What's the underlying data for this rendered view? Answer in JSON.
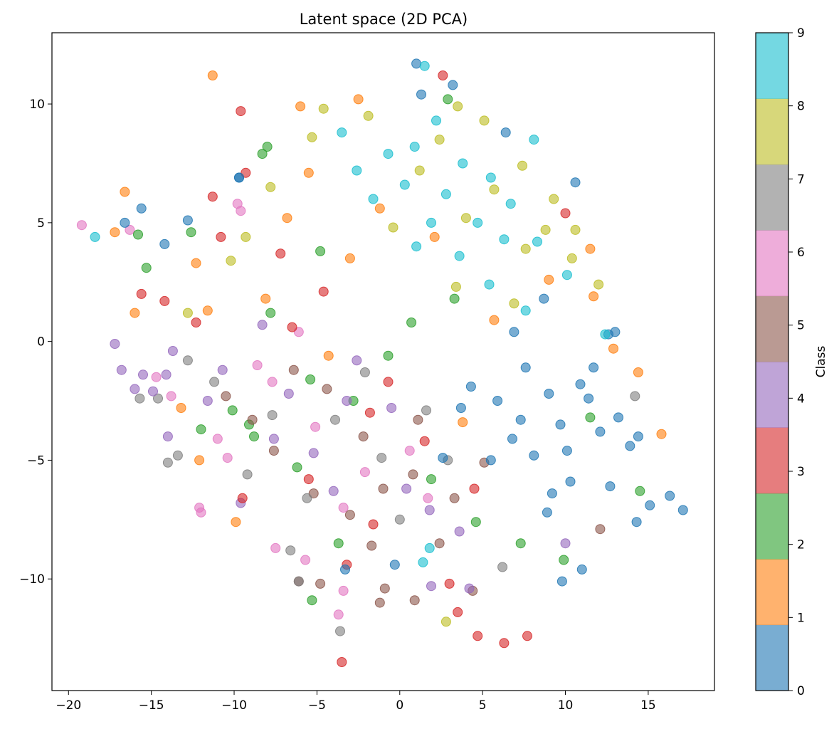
{
  "chart_data": {
    "type": "scatter",
    "title": "Latent space (2D PCA)",
    "xlabel": "",
    "ylabel": "",
    "xlim": [
      -21,
      19
    ],
    "ylim": [
      -14.7,
      13
    ],
    "xticks": [
      -20,
      -15,
      -10,
      -5,
      0,
      5,
      10,
      15
    ],
    "yticks": [
      -10,
      -5,
      0,
      5,
      10
    ],
    "xtick_labels": [
      "−20",
      "−15",
      "−10",
      "−5",
      "0",
      "5",
      "10",
      "15"
    ],
    "ytick_labels": [
      "−10",
      "−5",
      "0",
      "5",
      "10"
    ],
    "grid": false,
    "marker_alpha": 0.6,
    "colorbar": {
      "label": "Class",
      "ticks": [
        0,
        1,
        2,
        3,
        4,
        5,
        6,
        7,
        8,
        9
      ],
      "tick_labels": [
        "0",
        "1",
        "2",
        "3",
        "4",
        "5",
        "6",
        "7",
        "8",
        "9"
      ],
      "colors": [
        "#1f77b4",
        "#ff7f0e",
        "#2ca02c",
        "#d62728",
        "#9467bd",
        "#8c564b",
        "#e377c2",
        "#7f7f7f",
        "#bcbd22",
        "#17becf"
      ]
    },
    "series": [
      {
        "class": 0,
        "points": [
          [
            1.0,
            11.7
          ],
          [
            1.3,
            10.4
          ],
          [
            -9.7,
            6.9
          ],
          [
            -15.6,
            5.6
          ],
          [
            -16.6,
            5.0
          ],
          [
            -14.2,
            4.1
          ],
          [
            -12.8,
            5.1
          ],
          [
            10.6,
            6.7
          ],
          [
            6.4,
            8.8
          ],
          [
            9.8,
            -10.1
          ],
          [
            11.0,
            -9.6
          ],
          [
            17.1,
            -7.1
          ],
          [
            16.3,
            -6.5
          ],
          [
            15.1,
            -6.9
          ],
          [
            14.3,
            -7.6
          ],
          [
            13.9,
            -4.4
          ],
          [
            14.4,
            -4.0
          ],
          [
            12.6,
            0.3
          ],
          [
            13.0,
            0.4
          ],
          [
            3.2,
            10.8
          ],
          [
            -9.7,
            6.9
          ],
          [
            5.5,
            -5.0
          ],
          [
            8.1,
            -4.8
          ],
          [
            9.7,
            -3.5
          ],
          [
            11.4,
            -2.4
          ],
          [
            12.1,
            -3.8
          ],
          [
            7.6,
            -1.1
          ],
          [
            6.8,
            -4.1
          ],
          [
            10.3,
            -5.9
          ],
          [
            4.3,
            -1.9
          ],
          [
            8.7,
            1.8
          ],
          [
            6.9,
            0.4
          ],
          [
            11.7,
            -1.1
          ],
          [
            9.2,
            -6.4
          ],
          [
            10.1,
            -4.6
          ],
          [
            13.2,
            -3.2
          ],
          [
            3.7,
            -2.8
          ],
          [
            5.9,
            -2.5
          ],
          [
            2.6,
            -4.9
          ],
          [
            7.3,
            -3.3
          ],
          [
            8.9,
            -7.2
          ],
          [
            12.7,
            -6.1
          ],
          [
            9.0,
            -2.2
          ],
          [
            10.9,
            -1.8
          ],
          [
            -0.3,
            -9.4
          ],
          [
            -3.3,
            -9.6
          ]
        ]
      },
      {
        "class": 1,
        "points": [
          [
            -11.3,
            11.2
          ],
          [
            -2.5,
            10.2
          ],
          [
            -6.0,
            9.9
          ],
          [
            -16.6,
            6.3
          ],
          [
            -17.2,
            4.6
          ],
          [
            -16.0,
            1.2
          ],
          [
            12.9,
            -0.3
          ],
          [
            14.4,
            -1.3
          ],
          [
            15.8,
            -3.9
          ],
          [
            11.5,
            3.9
          ],
          [
            -3.0,
            3.5
          ],
          [
            -5.5,
            7.1
          ],
          [
            -8.1,
            1.8
          ],
          [
            -11.6,
            1.3
          ],
          [
            -13.2,
            -2.8
          ],
          [
            -12.1,
            -5.0
          ],
          [
            -9.9,
            -7.6
          ],
          [
            5.7,
            0.9
          ],
          [
            9.0,
            2.6
          ],
          [
            11.7,
            1.9
          ],
          [
            -1.2,
            5.6
          ],
          [
            2.1,
            4.4
          ],
          [
            -6.8,
            5.2
          ],
          [
            -4.3,
            -0.6
          ],
          [
            3.8,
            -3.4
          ],
          [
            -12.3,
            3.3
          ]
        ]
      },
      {
        "class": 2,
        "points": [
          [
            2.9,
            10.2
          ],
          [
            -8.0,
            8.2
          ],
          [
            -8.3,
            7.9
          ],
          [
            -12.6,
            4.6
          ],
          [
            -15.3,
            3.1
          ],
          [
            -15.8,
            4.5
          ],
          [
            -5.3,
            -10.9
          ],
          [
            9.9,
            -9.2
          ],
          [
            7.3,
            -8.5
          ],
          [
            14.5,
            -6.3
          ],
          [
            -7.8,
            1.2
          ],
          [
            -2.8,
            -2.5
          ],
          [
            -5.4,
            -1.6
          ],
          [
            0.7,
            0.8
          ],
          [
            -9.1,
            -3.5
          ],
          [
            -4.8,
            3.8
          ],
          [
            1.9,
            -5.8
          ],
          [
            4.6,
            -7.6
          ],
          [
            11.5,
            -3.2
          ],
          [
            -6.2,
            -5.3
          ],
          [
            -12.0,
            -3.7
          ],
          [
            -10.1,
            -2.9
          ],
          [
            -0.7,
            -0.6
          ],
          [
            3.3,
            1.8
          ],
          [
            -3.7,
            -8.5
          ],
          [
            -8.8,
            -4.0
          ]
        ]
      },
      {
        "class": 3,
        "points": [
          [
            -9.6,
            9.7
          ],
          [
            2.6,
            11.2
          ],
          [
            -9.3,
            7.1
          ],
          [
            -11.3,
            6.1
          ],
          [
            -15.6,
            2.0
          ],
          [
            -14.2,
            1.7
          ],
          [
            -3.5,
            -13.5
          ],
          [
            6.3,
            -12.7
          ],
          [
            4.7,
            -12.4
          ],
          [
            7.7,
            -12.4
          ],
          [
            3.5,
            -11.4
          ],
          [
            3.0,
            -10.2
          ],
          [
            -3.2,
            -9.4
          ],
          [
            -1.6,
            -7.7
          ],
          [
            10.0,
            5.4
          ],
          [
            -4.6,
            2.1
          ],
          [
            -7.2,
            3.7
          ],
          [
            -10.8,
            4.4
          ],
          [
            -1.8,
            -3.0
          ],
          [
            -5.5,
            -5.8
          ],
          [
            -9.5,
            -6.6
          ],
          [
            1.5,
            -4.2
          ],
          [
            4.5,
            -6.2
          ],
          [
            -0.7,
            -1.7
          ],
          [
            -6.5,
            0.6
          ],
          [
            -12.3,
            0.8
          ]
        ]
      },
      {
        "class": 4,
        "points": [
          [
            -17.2,
            -0.1
          ],
          [
            -16.8,
            -1.2
          ],
          [
            -16.0,
            -2.0
          ],
          [
            -14.0,
            -4.0
          ],
          [
            -15.5,
            -1.4
          ],
          [
            -14.9,
            -2.1
          ],
          [
            -14.1,
            -1.4
          ],
          [
            4.2,
            -10.4
          ],
          [
            1.9,
            -10.3
          ],
          [
            10.0,
            -8.5
          ],
          [
            -9.6,
            -6.8
          ],
          [
            -3.2,
            -2.5
          ],
          [
            -6.7,
            -2.2
          ],
          [
            -10.7,
            -1.2
          ],
          [
            -13.7,
            -0.4
          ],
          [
            -7.6,
            -4.1
          ],
          [
            -4.0,
            -6.3
          ],
          [
            0.4,
            -6.2
          ],
          [
            -0.5,
            -2.8
          ],
          [
            -8.3,
            0.7
          ],
          [
            1.8,
            -7.1
          ],
          [
            -11.6,
            -2.5
          ],
          [
            -2.6,
            -0.8
          ],
          [
            -5.2,
            -4.7
          ],
          [
            3.6,
            -8.0
          ]
        ]
      },
      {
        "class": 5,
        "points": [
          [
            -0.9,
            -10.4
          ],
          [
            -1.2,
            -11.0
          ],
          [
            0.9,
            -10.9
          ],
          [
            -6.1,
            -10.1
          ],
          [
            -4.8,
            -10.2
          ],
          [
            4.4,
            -10.5
          ],
          [
            12.1,
            -7.9
          ],
          [
            -5.2,
            -6.4
          ],
          [
            -1.0,
            -6.2
          ],
          [
            -3.0,
            -7.3
          ],
          [
            2.4,
            -8.5
          ],
          [
            -7.6,
            -4.6
          ],
          [
            -2.2,
            -4.0
          ],
          [
            0.8,
            -5.6
          ],
          [
            -4.4,
            -2.0
          ],
          [
            -8.9,
            -3.3
          ],
          [
            3.3,
            -6.6
          ],
          [
            -6.4,
            -1.2
          ],
          [
            1.1,
            -3.3
          ],
          [
            -10.5,
            -2.3
          ],
          [
            5.1,
            -5.1
          ],
          [
            -1.7,
            -8.6
          ]
        ]
      },
      {
        "class": 6,
        "points": [
          [
            -19.2,
            4.9
          ],
          [
            -16.3,
            4.7
          ],
          [
            -12.1,
            -7.0
          ],
          [
            -12.0,
            -7.2
          ],
          [
            -3.7,
            -11.5
          ],
          [
            -3.4,
            -10.5
          ],
          [
            -7.5,
            -8.7
          ],
          [
            -5.7,
            -9.2
          ],
          [
            -7.7,
            -1.7
          ],
          [
            -10.4,
            -4.9
          ],
          [
            -13.8,
            -2.3
          ],
          [
            -5.1,
            -3.6
          ],
          [
            -2.1,
            -5.5
          ],
          [
            0.6,
            -4.6
          ],
          [
            -8.6,
            -1.0
          ],
          [
            -6.1,
            0.4
          ],
          [
            -11.0,
            -4.1
          ],
          [
            -3.4,
            -7.0
          ],
          [
            1.7,
            -6.6
          ],
          [
            -14.7,
            -1.5
          ],
          [
            -9.8,
            5.8
          ],
          [
            -9.6,
            5.5
          ]
        ]
      },
      {
        "class": 7,
        "points": [
          [
            -3.6,
            -12.2
          ],
          [
            -14.0,
            -5.1
          ],
          [
            -13.4,
            -4.8
          ],
          [
            -15.7,
            -2.4
          ],
          [
            -14.6,
            -2.4
          ],
          [
            -6.6,
            -8.8
          ],
          [
            -6.1,
            -10.1
          ],
          [
            6.2,
            -9.5
          ],
          [
            14.2,
            -2.3
          ],
          [
            -1.1,
            -4.9
          ],
          [
            -3.9,
            -3.3
          ],
          [
            -7.7,
            -3.1
          ],
          [
            -11.2,
            -1.7
          ],
          [
            -5.6,
            -6.6
          ],
          [
            0.0,
            -7.5
          ],
          [
            2.9,
            -5.0
          ],
          [
            -2.1,
            -1.3
          ],
          [
            -9.2,
            -5.6
          ],
          [
            -12.8,
            -0.8
          ],
          [
            1.6,
            -2.9
          ]
        ]
      },
      {
        "class": 8,
        "points": [
          [
            2.8,
            -11.8
          ],
          [
            -4.6,
            9.8
          ],
          [
            -1.9,
            9.5
          ],
          [
            -5.3,
            8.6
          ],
          [
            -7.8,
            6.5
          ],
          [
            -9.3,
            4.4
          ],
          [
            -12.8,
            1.2
          ],
          [
            -10.2,
            3.4
          ],
          [
            3.5,
            9.9
          ],
          [
            2.4,
            8.5
          ],
          [
            5.1,
            9.3
          ],
          [
            7.4,
            7.4
          ],
          [
            9.3,
            6.0
          ],
          [
            10.6,
            4.7
          ],
          [
            10.4,
            3.5
          ],
          [
            12.0,
            2.4
          ],
          [
            5.7,
            6.4
          ],
          [
            4.0,
            5.2
          ],
          [
            7.6,
            3.9
          ],
          [
            1.2,
            7.2
          ],
          [
            8.8,
            4.7
          ],
          [
            -0.4,
            4.8
          ],
          [
            6.9,
            1.6
          ],
          [
            3.4,
            2.3
          ]
        ]
      },
      {
        "class": 9,
        "points": [
          [
            -18.4,
            4.4
          ],
          [
            1.5,
            11.6
          ],
          [
            -3.5,
            8.8
          ],
          [
            8.1,
            8.5
          ],
          [
            2.2,
            9.3
          ],
          [
            0.9,
            8.2
          ],
          [
            -0.7,
            7.9
          ],
          [
            3.8,
            7.5
          ],
          [
            5.5,
            6.9
          ],
          [
            6.7,
            5.8
          ],
          [
            2.8,
            6.2
          ],
          [
            0.3,
            6.6
          ],
          [
            4.7,
            5.0
          ],
          [
            1.9,
            5.0
          ],
          [
            8.3,
            4.2
          ],
          [
            -1.6,
            6.0
          ],
          [
            6.3,
            4.3
          ],
          [
            3.6,
            3.6
          ],
          [
            10.1,
            2.8
          ],
          [
            1.0,
            4.0
          ],
          [
            5.4,
            2.4
          ],
          [
            12.4,
            0.3
          ],
          [
            7.6,
            1.3
          ],
          [
            -2.6,
            7.2
          ],
          [
            1.4,
            -9.3
          ],
          [
            1.8,
            -8.7
          ]
        ]
      }
    ]
  }
}
